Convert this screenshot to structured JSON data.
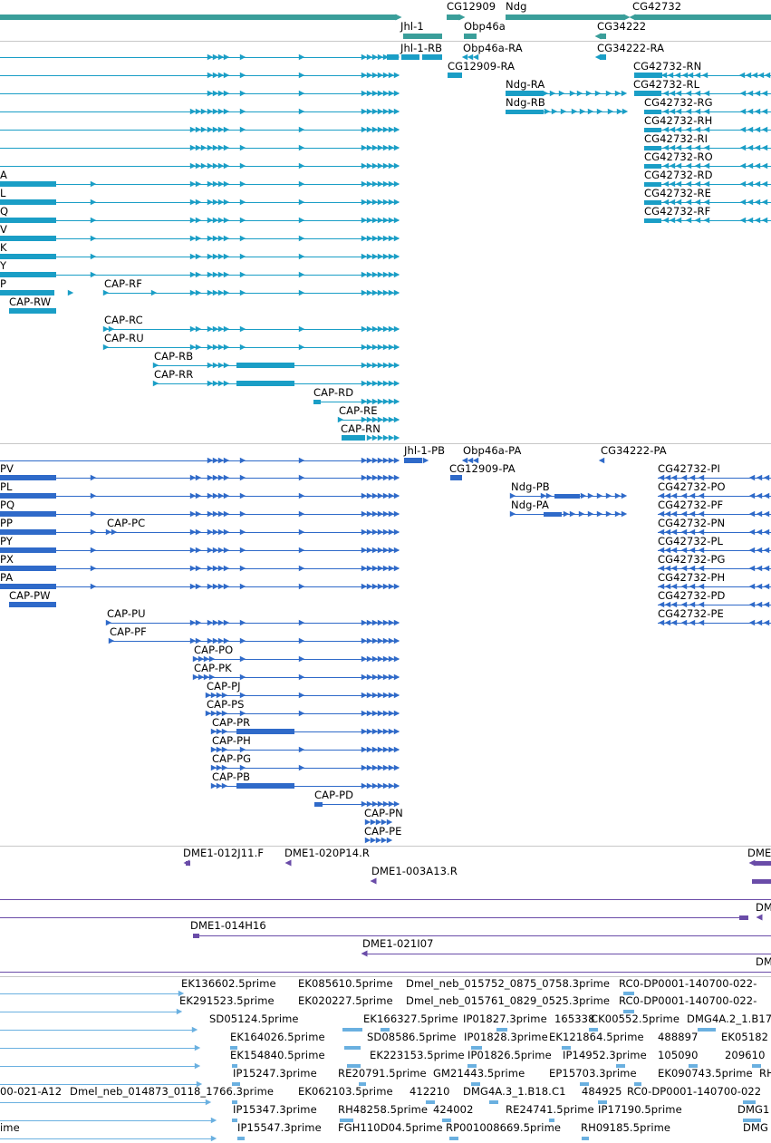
{
  "colors": {
    "gene": "#3a9e9a",
    "transcript_rna": "#1a9ec6",
    "transcript_protein": "#2f6ac9",
    "clone": "#6a4ca8",
    "est": "#6ab0e0",
    "divider": "#c8c8c8"
  },
  "gene_track": {
    "labels": [
      "CG12909",
      "Ndg",
      "CG42732",
      "Jhl-1",
      "Obp46a",
      "CG34222"
    ]
  },
  "rna_track": {
    "labels": [
      "Jhl-1-RB",
      "Obp46a-RA",
      "CG34222-RA",
      "CG12909-RA",
      "CG42732-RN",
      "Ndg-RA",
      "CG42732-RL",
      "Ndg-RB",
      "CG42732-RG",
      "CG42732-RH",
      "CG42732-RI",
      "CG42732-RO",
      "CG42732-RD",
      "CG42732-RE",
      "CG42732-RF",
      "A",
      "L",
      "Q",
      "V",
      "K",
      "Y",
      "P",
      "CAP-RF",
      "CAP-RW",
      "CAP-RC",
      "CAP-RU",
      "CAP-RB",
      "CAP-RR",
      "CAP-RD",
      "CAP-RE",
      "CAP-RN"
    ]
  },
  "protein_track": {
    "labels": [
      "Jhl-1-PB",
      "Obp46a-PA",
      "CG34222-PA",
      "CG12909-PA",
      "PV",
      "CG42732-PI",
      "PL",
      "CG42732-PO",
      "Ndg-PB",
      "PQ",
      "CG42732-PF",
      "Ndg-PA",
      "PP",
      "CAP-PC",
      "CG42732-PN",
      "PY",
      "CG42732-PL",
      "PX",
      "CG42732-PG",
      "PA",
      "CG42732-PH",
      "CAP-PW",
      "CG42732-PD",
      "CAP-PU",
      "CG42732-PE",
      "CAP-PF",
      "CAP-PO",
      "CAP-PK",
      "CAP-PJ",
      "CAP-PS",
      "CAP-PR",
      "CAP-PH",
      "CAP-PG",
      "CAP-PB",
      "CAP-PD",
      "CAP-PN",
      "CAP-PE"
    ]
  },
  "clone_track": {
    "labels": [
      "DME1-012J11.F",
      "DME1-020P14.R",
      "DME",
      "DME1-003A13.R",
      "DME",
      "DME1-014H16",
      "DME1-021I07",
      "DM"
    ]
  },
  "est_track": {
    "labels": [
      "EK136602.5prime",
      "EK085610.5prime",
      "Dmel_neb_015752_0875_0758.3prime",
      "RC0-DP0001-140700-022-",
      "EK291523.5prime",
      "EK020227.5prime",
      "Dmel_neb_015761_0829_0525.3prime",
      "RC0-DP0001-140700-022-",
      "SD05124.5prime",
      "EK166327.5prime",
      "IP01827.3prime",
      "165338",
      "CK00552.5prime",
      "DMG4A.2_1.B17",
      "EK164026.5prime",
      "SD08586.5prime",
      "IP01828.3prime",
      "EK121864.5prime",
      "488897",
      "EK05182",
      "EK154840.5prime",
      "EK223153.5prime",
      "IP01826.5prime",
      "IP14952.3prime",
      "105090",
      "209610",
      "IP15247.3prime",
      "RE20791.5prime",
      "GM21443.5prime",
      "EP15703.3prime",
      "EK090743.5prime",
      "RH",
      "00-021-A12",
      "Dmel_neb_014873_0118_1766.3prime",
      "EK062103.5prime",
      "412210",
      "DMG4A.3_1.B18.C1",
      "484925",
      "RC0-DP0001-140700-022",
      "IP15347.3prime",
      "RH48258.5prime",
      "424002",
      "RE24741.5prime",
      "IP17190.5prime",
      "DMG1",
      "ime",
      "IP15547.3prime",
      "FGH110D04.5prime",
      "RP001008669.5prime",
      "RH09185.5prime",
      "DMG",
      "prime"
    ]
  }
}
